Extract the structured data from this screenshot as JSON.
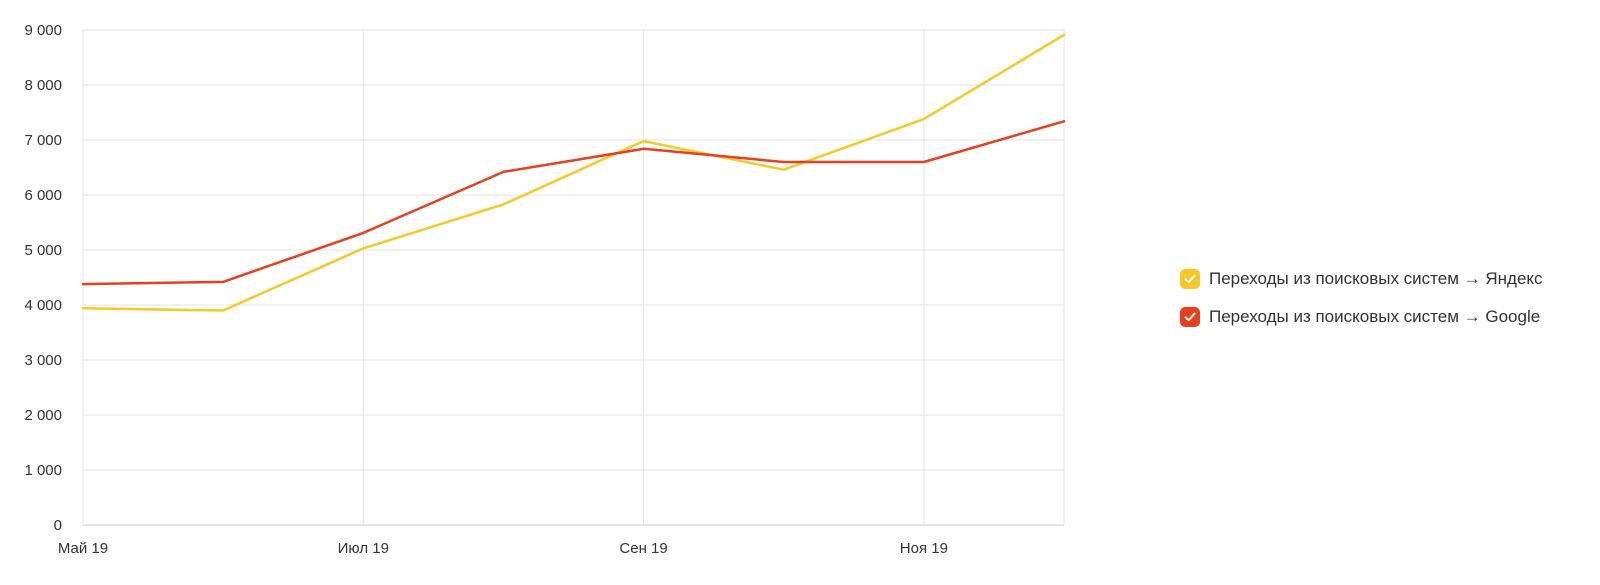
{
  "chart_data": {
    "type": "line",
    "categories": [
      "Май 19",
      "",
      "Июл 19",
      "",
      "Сен 19",
      "",
      "Ноя 19",
      ""
    ],
    "x_tick_labels": [
      "Май 19",
      "Июл 19",
      "Сен 19",
      "Ноя 19"
    ],
    "y_tick_labels": [
      "0",
      "1 000",
      "2 000",
      "3 000",
      "4 000",
      "5 000",
      "6 000",
      "7 000",
      "8 000",
      "9 000"
    ],
    "ylim": [
      0,
      9000
    ],
    "grid": true,
    "legend_position": "right",
    "series": [
      {
        "name": "Переходы из поисковых систем → Яндекс",
        "color": "#f7c927",
        "values": [
          3940,
          3900,
          5030,
          5830,
          6980,
          6460,
          7380,
          8910
        ]
      },
      {
        "name": "Переходы из поисковых систем → Google",
        "color": "#e8401c",
        "values": [
          4380,
          4420,
          5310,
          6420,
          6840,
          6600,
          6600,
          7340
        ]
      }
    ]
  },
  "colors": {
    "grid": "#e6e6e6",
    "axis": "#cccccc",
    "text": "#333333"
  },
  "legend": {
    "items": [
      {
        "label": "Переходы из поисковых систем → Яндекс",
        "color": "#f7c927",
        "icon": "checkmark-icon"
      },
      {
        "label": "Переходы из поисковых систем → Google",
        "color": "#e8401c",
        "icon": "checkmark-icon"
      }
    ]
  }
}
